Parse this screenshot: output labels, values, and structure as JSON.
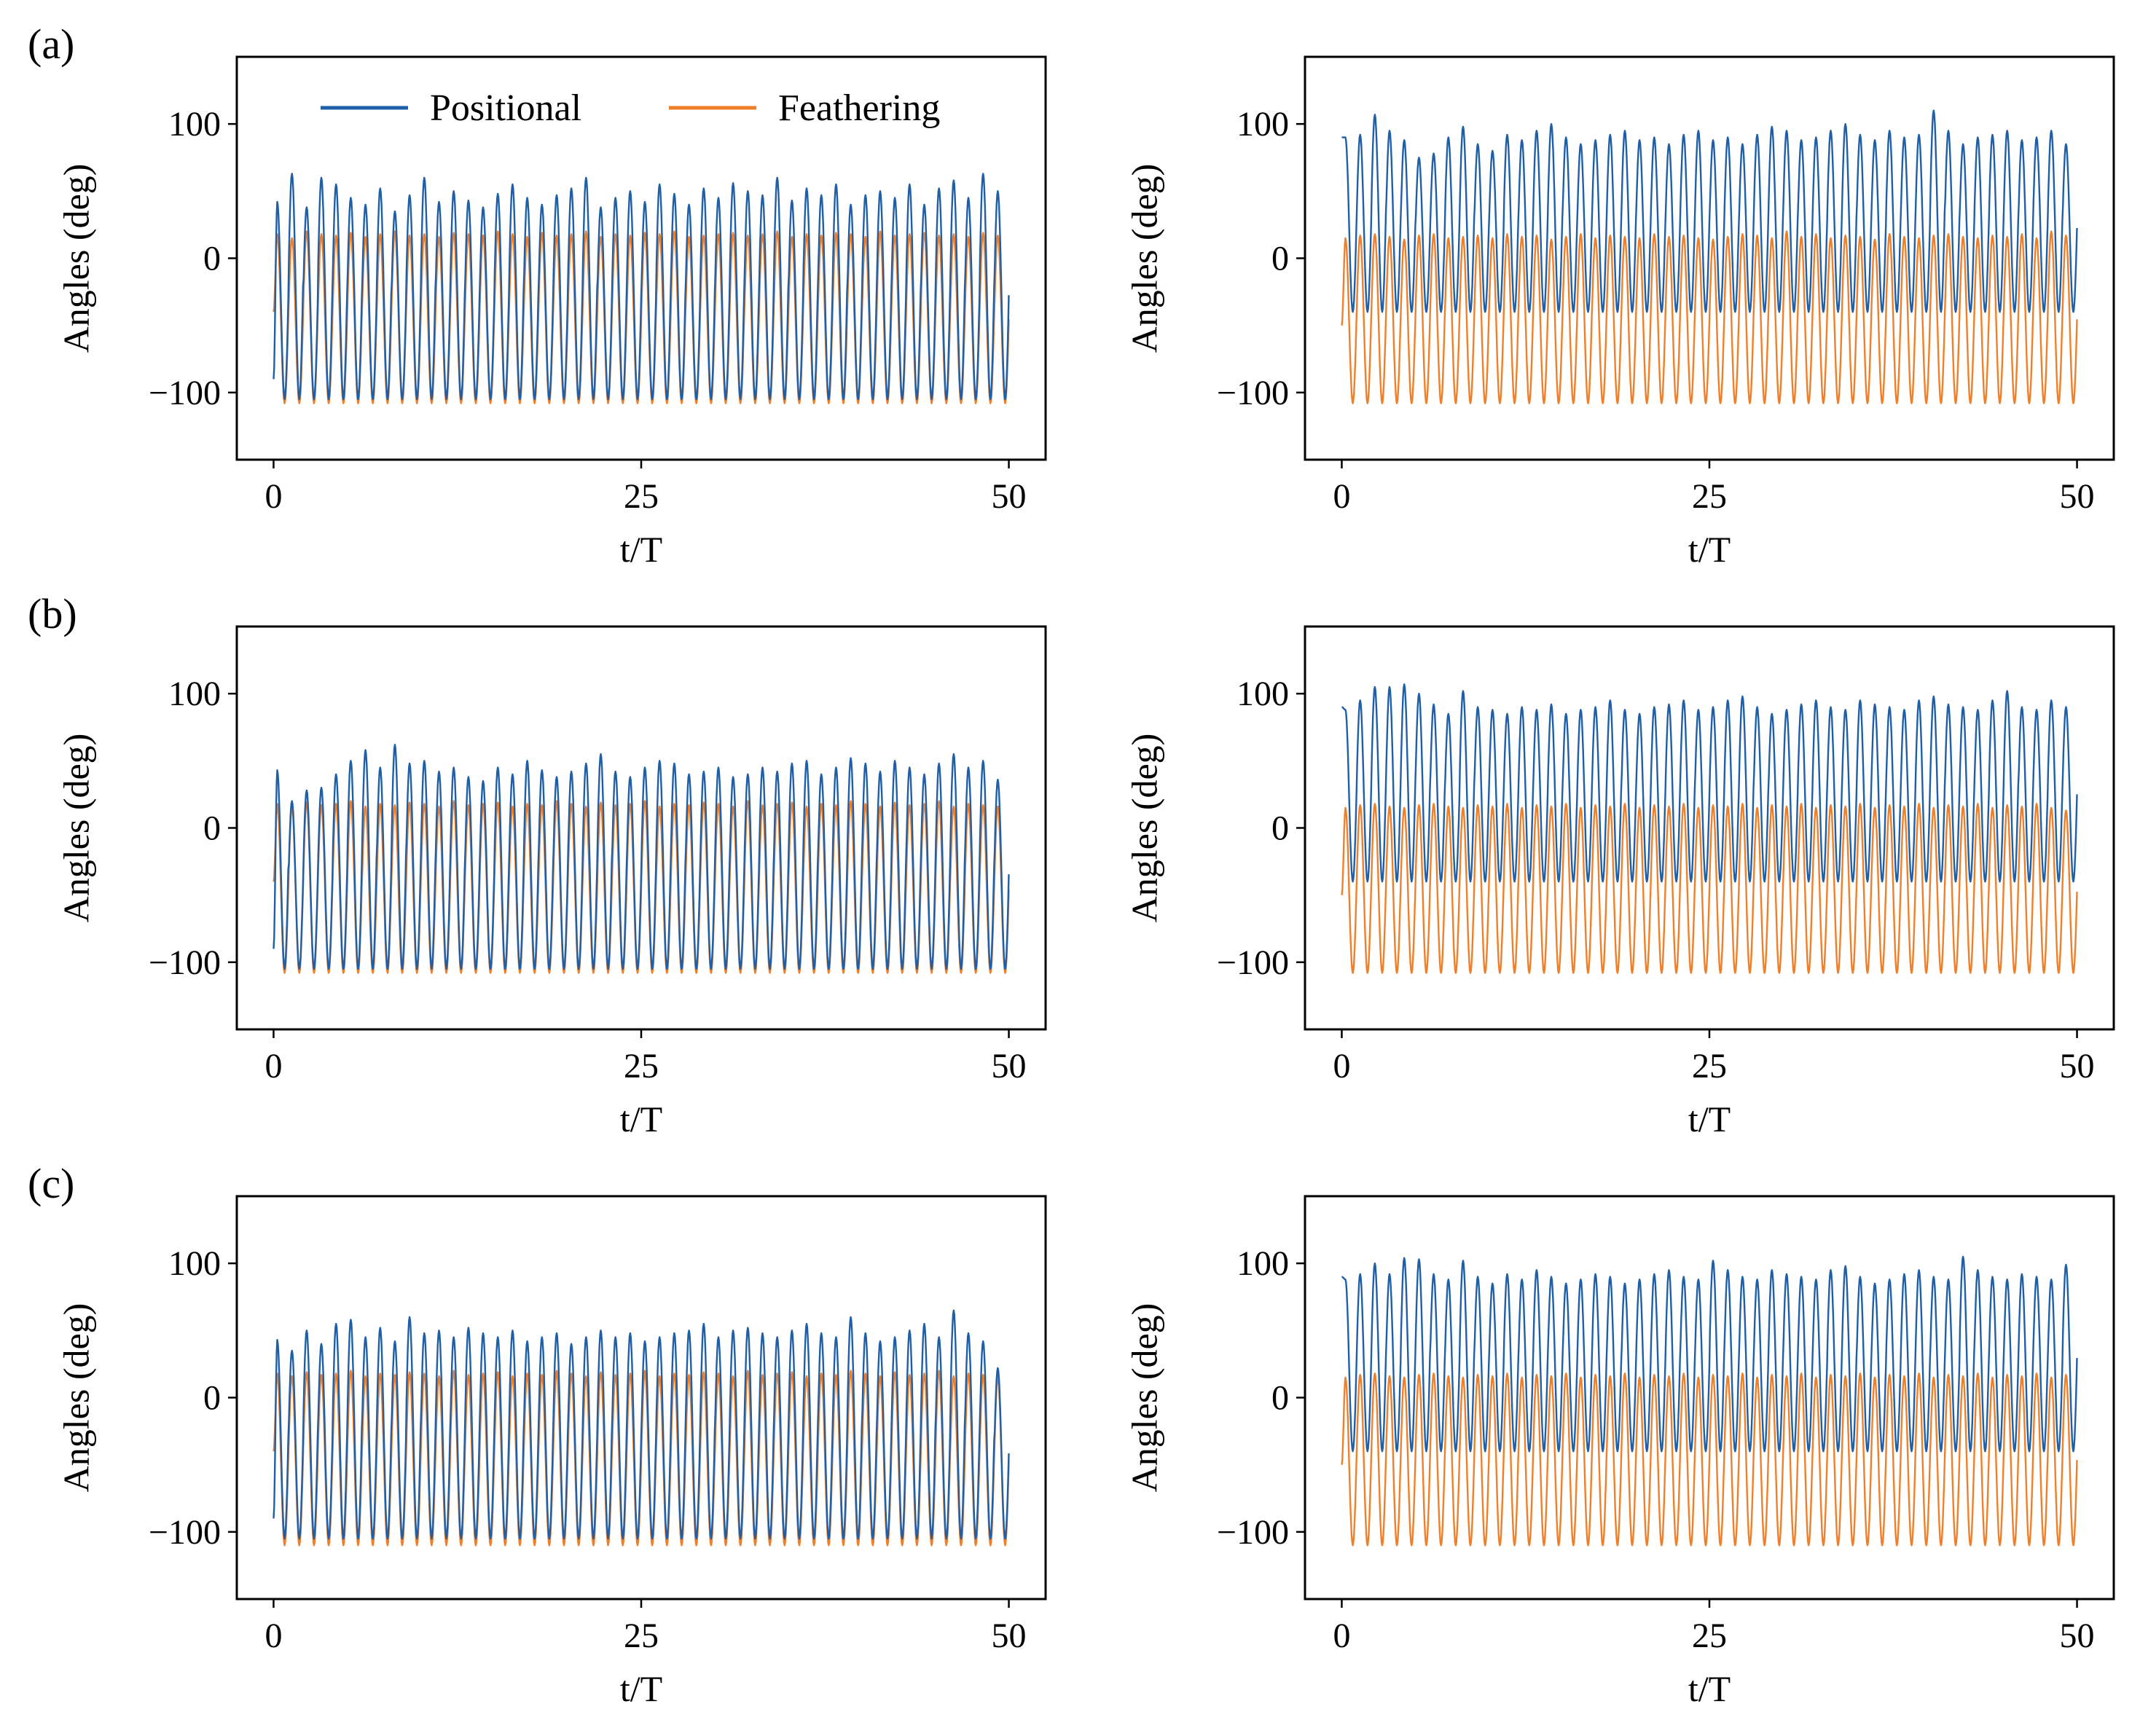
{
  "figure": {
    "panel_labels": [
      "(a)",
      "(b)",
      "(c)"
    ]
  },
  "colors": {
    "positional": "#1f5fa8",
    "feathering": "#f07f2a",
    "frame": "#000000",
    "background": "#ffffff"
  },
  "legend": {
    "items": [
      {
        "label": "Positional",
        "color": "#1f5fa8"
      },
      {
        "label": "Feathering",
        "color": "#f07f2a"
      }
    ],
    "location": "top-center of first subplot"
  },
  "chart_data": [
    {
      "id": "a-left",
      "type": "line",
      "row_label": "(a)",
      "show_legend": true,
      "xlabel": "t/T",
      "ylabel": "Angles (deg)",
      "xlim": [
        -2.5,
        52.5
      ],
      "ylim": [
        -150,
        150
      ],
      "xticks": [
        0,
        25,
        50
      ],
      "xtick_labels": [
        "0",
        "25",
        "50"
      ],
      "yticks": [
        -100,
        0,
        100
      ],
      "ytick_labels": [
        "−100",
        "0",
        "100"
      ],
      "series": [
        {
          "name": "Positional",
          "color": "#1f5fa8",
          "x_start": 0,
          "x_end": 50,
          "start": -90,
          "trough": -105,
          "cycle_peaks": [
            42,
            63,
            38,
            60,
            55,
            45,
            40,
            52,
            35,
            47,
            60,
            42,
            50,
            43,
            38,
            48,
            55,
            45,
            40,
            47,
            52,
            60,
            38,
            45,
            50,
            42,
            55,
            48,
            40,
            52,
            45,
            56,
            50,
            47,
            60,
            43,
            52,
            47,
            55,
            40,
            47,
            50,
            45,
            55,
            40,
            52,
            58,
            45,
            63,
            50
          ]
        },
        {
          "name": "Feathering",
          "color": "#f07f2a",
          "x_start": 0,
          "x_end": 50,
          "start": -40,
          "trough": -108,
          "cycle_peaks": [
            18,
            15,
            20,
            18,
            17,
            19,
            16,
            18,
            20,
            17,
            18,
            16,
            19,
            18,
            17,
            20,
            18,
            16,
            19,
            17,
            18,
            20,
            16,
            18,
            17,
            19,
            18,
            20,
            16,
            17,
            18,
            19,
            17,
            18,
            20,
            16,
            18,
            17,
            19,
            18,
            16,
            20,
            17,
            18,
            19,
            17,
            18,
            16,
            19,
            17
          ]
        }
      ]
    },
    {
      "id": "a-right",
      "type": "line",
      "row_label": "(a)",
      "show_legend": false,
      "xlabel": "t/T",
      "ylabel": "Angles (deg)",
      "xlim": [
        -2.5,
        52.5
      ],
      "ylim": [
        -150,
        150
      ],
      "xticks": [
        0,
        25,
        50
      ],
      "xtick_labels": [
        "0",
        "25",
        "50"
      ],
      "yticks": [
        -100,
        0,
        100
      ],
      "ytick_labels": [
        "−100",
        "0",
        "100"
      ],
      "series": [
        {
          "name": "Positional",
          "color": "#1f5fa8",
          "x_start": 0,
          "x_end": 50,
          "start": 90,
          "trough": -40,
          "cycle_peaks": [
            90,
            92,
            107,
            95,
            88,
            75,
            78,
            90,
            98,
            85,
            80,
            92,
            88,
            95,
            100,
            90,
            85,
            88,
            92,
            95,
            88,
            90,
            85,
            92,
            95,
            88,
            90,
            85,
            92,
            98,
            95,
            88,
            90,
            95,
            100,
            92,
            88,
            95,
            90,
            92,
            110,
            95,
            85,
            90,
            92,
            95,
            88,
            90,
            95,
            85
          ]
        },
        {
          "name": "Feathering",
          "color": "#f07f2a",
          "x_start": 0,
          "x_end": 50,
          "start": -50,
          "trough": -108,
          "cycle_peaks": [
            15,
            17,
            18,
            16,
            14,
            17,
            18,
            15,
            16,
            17,
            15,
            18,
            16,
            17,
            14,
            16,
            18,
            15,
            17,
            16,
            15,
            18,
            16,
            17,
            15,
            14,
            16,
            18,
            17,
            15,
            20,
            16,
            18,
            15,
            17,
            16,
            14,
            18,
            16,
            15,
            17,
            18,
            16,
            15,
            17,
            16,
            18,
            15,
            20,
            17
          ]
        }
      ]
    },
    {
      "id": "b-left",
      "type": "line",
      "row_label": "(b)",
      "show_legend": false,
      "xlabel": "t/T",
      "ylabel": "Angles (deg)",
      "xlim": [
        -2.5,
        52.5
      ],
      "ylim": [
        -150,
        150
      ],
      "xticks": [
        0,
        25,
        50
      ],
      "xtick_labels": [
        "0",
        "25",
        "50"
      ],
      "yticks": [
        -100,
        0,
        100
      ],
      "ytick_labels": [
        "−100",
        "0",
        "100"
      ],
      "series": [
        {
          "name": "Positional",
          "color": "#1f5fa8",
          "x_start": 0,
          "x_end": 50,
          "start": -90,
          "trough": -105,
          "cycle_peaks": [
            43,
            20,
            28,
            30,
            40,
            50,
            58,
            45,
            62,
            48,
            50,
            42,
            45,
            38,
            35,
            45,
            40,
            50,
            43,
            38,
            42,
            48,
            55,
            42,
            38,
            45,
            50,
            48,
            40,
            42,
            45,
            38,
            40,
            45,
            42,
            48,
            50,
            40,
            45,
            52,
            48,
            42,
            50,
            45,
            40,
            48,
            55,
            45,
            50,
            36
          ]
        },
        {
          "name": "Feathering",
          "color": "#f07f2a",
          "x_start": 0,
          "x_end": 50,
          "start": -40,
          "trough": -108,
          "cycle_peaks": [
            18,
            16,
            19,
            17,
            18,
            20,
            16,
            18,
            17,
            19,
            18,
            16,
            20,
            17,
            18,
            19,
            16,
            18,
            17,
            20,
            18,
            16,
            19,
            17,
            18,
            20,
            16,
            18,
            17,
            19,
            18,
            16,
            20,
            17,
            18,
            19,
            16,
            18,
            17,
            20,
            18,
            16,
            19,
            17,
            18,
            20,
            16,
            18,
            17,
            16
          ]
        }
      ]
    },
    {
      "id": "b-right",
      "type": "line",
      "row_label": "(b)",
      "show_legend": false,
      "xlabel": "t/T",
      "ylabel": "Angles (deg)",
      "xlim": [
        -2.5,
        52.5
      ],
      "ylim": [
        -150,
        150
      ],
      "xticks": [
        0,
        25,
        50
      ],
      "xtick_labels": [
        "0",
        "25",
        "50"
      ],
      "yticks": [
        -100,
        0,
        100
      ],
      "ytick_labels": [
        "−100",
        "0",
        "100"
      ],
      "series": [
        {
          "name": "Positional",
          "color": "#1f5fa8",
          "x_start": 0,
          "x_end": 50,
          "start": 90,
          "trough": -40,
          "cycle_peaks": [
            88,
            95,
            105,
            105,
            107,
            100,
            92,
            85,
            102,
            90,
            88,
            85,
            90,
            88,
            92,
            85,
            88,
            90,
            95,
            88,
            85,
            90,
            92,
            95,
            88,
            90,
            95,
            98,
            90,
            85,
            88,
            92,
            95,
            90,
            88,
            95,
            92,
            90,
            88,
            95,
            98,
            92,
            90,
            88,
            95,
            102,
            90,
            88,
            95,
            90
          ]
        },
        {
          "name": "Feathering",
          "color": "#f07f2a",
          "x_start": 0,
          "x_end": 50,
          "start": -50,
          "trough": -108,
          "cycle_peaks": [
            15,
            17,
            18,
            16,
            15,
            17,
            18,
            16,
            15,
            17,
            16,
            18,
            15,
            17,
            16,
            18,
            15,
            17,
            16,
            18,
            15,
            17,
            16,
            18,
            15,
            17,
            16,
            18,
            15,
            17,
            16,
            18,
            15,
            17,
            16,
            18,
            15,
            17,
            16,
            18,
            15,
            17,
            16,
            18,
            15,
            17,
            16,
            18,
            15,
            13
          ]
        }
      ]
    },
    {
      "id": "c-left",
      "type": "line",
      "row_label": "(c)",
      "show_legend": false,
      "xlabel": "t/T",
      "ylabel": "Angles (deg)",
      "xlim": [
        -2.5,
        52.5
      ],
      "ylim": [
        -150,
        150
      ],
      "xticks": [
        0,
        25,
        50
      ],
      "xtick_labels": [
        "0",
        "25",
        "50"
      ],
      "yticks": [
        -100,
        0,
        100
      ],
      "ytick_labels": [
        "−100",
        "0",
        "100"
      ],
      "series": [
        {
          "name": "Positional",
          "color": "#1f5fa8",
          "x_start": 0,
          "x_end": 50,
          "start": -90,
          "trough": -105,
          "cycle_peaks": [
            43,
            35,
            50,
            40,
            55,
            58,
            45,
            52,
            42,
            60,
            48,
            50,
            45,
            52,
            48,
            45,
            50,
            42,
            45,
            48,
            40,
            45,
            50,
            45,
            48,
            42,
            45,
            48,
            50,
            55,
            45,
            50,
            52,
            48,
            45,
            50,
            55,
            48,
            45,
            60,
            48,
            42,
            45,
            50,
            55,
            45,
            65,
            48,
            42,
            22
          ]
        },
        {
          "name": "Feathering",
          "color": "#f07f2a",
          "x_start": 0,
          "x_end": 50,
          "start": -40,
          "trough": -110,
          "cycle_peaks": [
            18,
            16,
            19,
            17,
            18,
            20,
            16,
            18,
            17,
            19,
            18,
            16,
            20,
            17,
            18,
            19,
            16,
            18,
            17,
            20,
            18,
            16,
            19,
            17,
            18,
            20,
            16,
            18,
            17,
            19,
            18,
            16,
            20,
            17,
            18,
            19,
            16,
            18,
            17,
            20,
            18,
            16,
            19,
            17,
            18,
            20,
            16,
            18,
            17,
            16
          ]
        }
      ]
    },
    {
      "id": "c-right",
      "type": "line",
      "row_label": "(c)",
      "show_legend": false,
      "xlabel": "t/T",
      "ylabel": "Angles (deg)",
      "xlim": [
        -2.5,
        52.5
      ],
      "ylim": [
        -150,
        150
      ],
      "xticks": [
        0,
        25,
        50
      ],
      "xtick_labels": [
        "0",
        "25",
        "50"
      ],
      "yticks": [
        -100,
        0,
        100
      ],
      "ytick_labels": [
        "−100",
        "0",
        "100"
      ],
      "series": [
        {
          "name": "Positional",
          "color": "#1f5fa8",
          "x_start": 0,
          "x_end": 50,
          "start": 90,
          "trough": -40,
          "cycle_peaks": [
            88,
            92,
            100,
            92,
            104,
            103,
            92,
            88,
            102,
            90,
            85,
            92,
            88,
            95,
            90,
            85,
            88,
            92,
            90,
            85,
            88,
            92,
            95,
            90,
            88,
            102,
            95,
            90,
            88,
            95,
            92,
            90,
            88,
            95,
            98,
            90,
            85,
            88,
            92,
            95,
            90,
            88,
            105,
            95,
            90,
            88,
            92,
            90,
            88,
            99
          ]
        },
        {
          "name": "Feathering",
          "color": "#f07f2a",
          "x_start": 0,
          "x_end": 50,
          "start": -50,
          "trough": -110,
          "cycle_peaks": [
            15,
            17,
            18,
            16,
            15,
            17,
            18,
            16,
            15,
            17,
            16,
            18,
            15,
            17,
            16,
            18,
            15,
            17,
            16,
            18,
            15,
            17,
            16,
            18,
            15,
            17,
            16,
            18,
            15,
            17,
            16,
            18,
            15,
            17,
            16,
            18,
            15,
            17,
            16,
            18,
            15,
            17,
            16,
            18,
            15,
            17,
            16,
            18,
            15,
            17
          ]
        }
      ]
    }
  ]
}
